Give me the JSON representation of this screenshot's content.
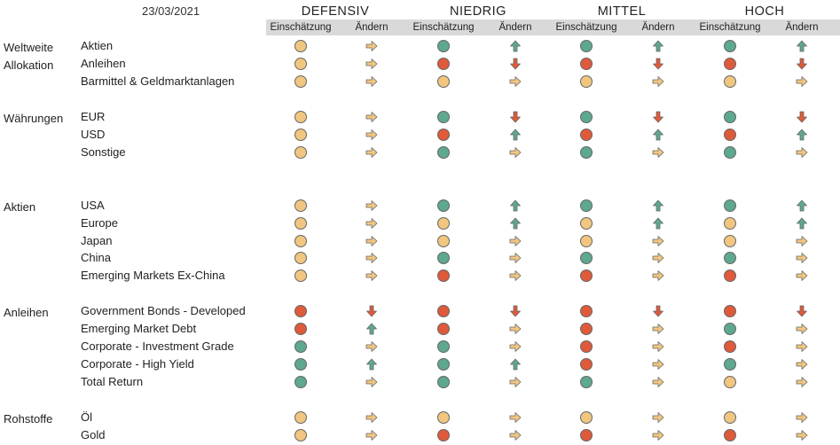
{
  "date": "23/03/2021",
  "colors": {
    "neutral": "#f0c680",
    "positive": "#5ea88e",
    "negative": "#df5a3a"
  },
  "sub_labels": {
    "rating": "Einschätzung",
    "change": "Ändern"
  },
  "profiles": [
    {
      "id": "defensiv",
      "label": "DEFENSIV"
    },
    {
      "id": "niedrig",
      "label": "NIEDRIG"
    },
    {
      "id": "mittel",
      "label": "MITTEL"
    },
    {
      "id": "hoch",
      "label": "HOCH"
    }
  ],
  "groups": [
    {
      "category": "Weltweite\nAllokation",
      "rows": [
        {
          "label": "Aktien",
          "cells": [
            [
              "neutral",
              "right"
            ],
            [
              "positive",
              "up"
            ],
            [
              "positive",
              "up"
            ],
            [
              "positive",
              "up"
            ]
          ]
        },
        {
          "label": "Anleihen",
          "cells": [
            [
              "neutral",
              "right"
            ],
            [
              "negative",
              "down"
            ],
            [
              "negative",
              "down"
            ],
            [
              "negative",
              "down"
            ]
          ]
        },
        {
          "label": "Barmittel & Geldmarktanlagen",
          "cells": [
            [
              "neutral",
              "right"
            ],
            [
              "neutral",
              "right"
            ],
            [
              "neutral",
              "right"
            ],
            [
              "neutral",
              "right"
            ]
          ]
        }
      ]
    },
    {
      "category": "Währungen",
      "rows": [
        {
          "label": "EUR",
          "cells": [
            [
              "neutral",
              "right"
            ],
            [
              "positive",
              "down"
            ],
            [
              "positive",
              "down"
            ],
            [
              "positive",
              "down"
            ]
          ]
        },
        {
          "label": "USD",
          "cells": [
            [
              "neutral",
              "right"
            ],
            [
              "negative",
              "up"
            ],
            [
              "negative",
              "up"
            ],
            [
              "negative",
              "up"
            ]
          ]
        },
        {
          "label": "Sonstige",
          "cells": [
            [
              "neutral",
              "right"
            ],
            [
              "positive",
              "right"
            ],
            [
              "positive",
              "right"
            ],
            [
              "positive",
              "right"
            ]
          ]
        }
      ]
    },
    {
      "category": "Aktien",
      "rows": [
        {
          "label": "USA",
          "cells": [
            [
              "neutral",
              "right"
            ],
            [
              "positive",
              "up"
            ],
            [
              "positive",
              "up"
            ],
            [
              "positive",
              "up"
            ]
          ]
        },
        {
          "label": "Europe",
          "cells": [
            [
              "neutral",
              "right"
            ],
            [
              "neutral",
              "up"
            ],
            [
              "neutral",
              "up"
            ],
            [
              "neutral",
              "up"
            ]
          ]
        },
        {
          "label": "Japan",
          "cells": [
            [
              "neutral",
              "right"
            ],
            [
              "neutral",
              "right"
            ],
            [
              "neutral",
              "right"
            ],
            [
              "neutral",
              "right"
            ]
          ]
        },
        {
          "label": "China",
          "cells": [
            [
              "neutral",
              "right"
            ],
            [
              "positive",
              "right"
            ],
            [
              "positive",
              "right"
            ],
            [
              "positive",
              "right"
            ]
          ]
        },
        {
          "label": "Emerging Markets Ex-China",
          "cells": [
            [
              "neutral",
              "right"
            ],
            [
              "negative",
              "right"
            ],
            [
              "negative",
              "right"
            ],
            [
              "negative",
              "right"
            ]
          ]
        }
      ]
    },
    {
      "category": "Anleihen",
      "rows": [
        {
          "label": "Government Bonds - Developed",
          "cells": [
            [
              "negative",
              "down"
            ],
            [
              "negative",
              "down"
            ],
            [
              "negative",
              "down"
            ],
            [
              "negative",
              "down"
            ]
          ]
        },
        {
          "label": "Emerging Market Debt",
          "cells": [
            [
              "negative",
              "up"
            ],
            [
              "negative",
              "right"
            ],
            [
              "negative",
              "right"
            ],
            [
              "positive",
              "right"
            ]
          ]
        },
        {
          "label": "Corporate - Investment Grade",
          "cells": [
            [
              "positive",
              "right"
            ],
            [
              "positive",
              "right"
            ],
            [
              "negative",
              "right"
            ],
            [
              "negative",
              "right"
            ]
          ]
        },
        {
          "label": "Corporate - High Yield",
          "cells": [
            [
              "positive",
              "up"
            ],
            [
              "positive",
              "up"
            ],
            [
              "negative",
              "right"
            ],
            [
              "positive",
              "right"
            ]
          ]
        },
        {
          "label": "Total Return",
          "cells": [
            [
              "positive",
              "right"
            ],
            [
              "positive",
              "right"
            ],
            [
              "positive",
              "right"
            ],
            [
              "neutral",
              "right"
            ]
          ]
        }
      ]
    },
    {
      "category": "Rohstoffe",
      "rows": [
        {
          "label": "Öl",
          "cells": [
            [
              "neutral",
              "right"
            ],
            [
              "neutral",
              "right"
            ],
            [
              "neutral",
              "right"
            ],
            [
              "neutral",
              "right"
            ]
          ]
        },
        {
          "label": "Gold",
          "cells": [
            [
              "neutral",
              "right"
            ],
            [
              "negative",
              "right"
            ],
            [
              "negative",
              "right"
            ],
            [
              "negative",
              "right"
            ]
          ]
        }
      ]
    }
  ]
}
